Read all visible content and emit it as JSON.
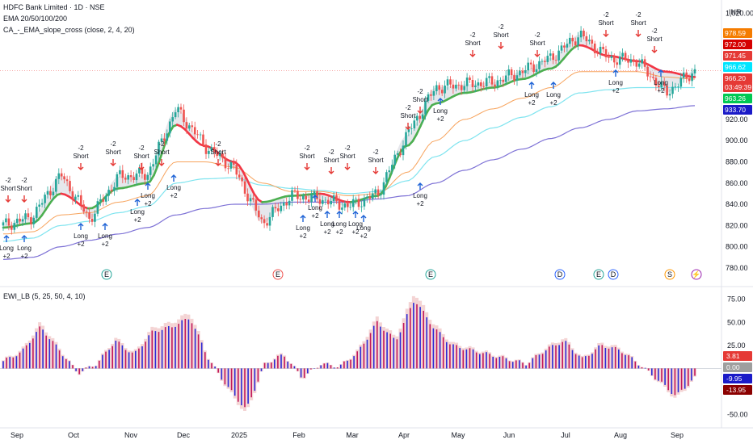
{
  "symbol_title": "HDFC Bank Limited · 1D · NSE",
  "legend": {
    "ema": "EMA 20/50/100/200",
    "slope": "CA_-_EMA_slope_cross (close, 2, 4, 20)",
    "osc": "EWI_LB (5, 25, 50, 4, 10)"
  },
  "currency": "INR",
  "colors": {
    "up": "#26a69a",
    "down": "#ef5350",
    "ema20_up": "#4caf50",
    "ema20_down": "#f23645",
    "ema50": "#f7a35c",
    "ema100": "#7fe4ef",
    "ema200": "#7e72d6",
    "osc_blue": "#2b2bd6",
    "osc_red": "#c2185b",
    "osc_shadow": "#e6a0a0"
  },
  "price_axis": {
    "min": 770,
    "max": 1025,
    "ticks": [
      "1,020.00",
      "940.00",
      "920.00",
      "900.00",
      "880.00",
      "860.00",
      "840.00",
      "820.00",
      "800.00",
      "780.00"
    ]
  },
  "price_badges": [
    {
      "label": "978.59",
      "color": "#f57c00"
    },
    {
      "label": "972.00",
      "color": "#d50000"
    },
    {
      "label": "971.45",
      "color": "#e53935"
    },
    {
      "label": "966.62",
      "color": "#00e5ff"
    },
    {
      "label": "966.20",
      "color": "#e53935"
    },
    {
      "label": "03:49:39",
      "color": "#e53935"
    },
    {
      "label": "963.26",
      "color": "#00c853"
    },
    {
      "label": "933.70",
      "color": "#1a1ac8"
    }
  ],
  "osc_axis": {
    "min": -60,
    "max": 80,
    "ticks": [
      "75.00",
      "50.00",
      "25.00",
      "-25.00",
      "-50.00"
    ]
  },
  "osc_badges": [
    {
      "label": "3.81",
      "color": "#e53935"
    },
    {
      "label": "0.00",
      "color": "#9e9e9e"
    },
    {
      "label": "-9.95",
      "color": "#1a1ac8"
    },
    {
      "label": "-13.95",
      "color": "#8b0000"
    }
  ],
  "time_axis": [
    "Sep",
    "Oct",
    "Nov",
    "Dec",
    "2025",
    "Feb",
    "Mar",
    "Apr",
    "May",
    "Jun",
    "Jul",
    "Aug",
    "Sep"
  ],
  "event_markers": [
    "E",
    "E",
    "E",
    "D",
    "E",
    "D",
    "S",
    "⚡"
  ],
  "signal_labels": {
    "short": [
      "-2",
      "Short"
    ],
    "long": [
      "Long",
      "+2"
    ]
  },
  "chart_data": [
    {
      "type": "candlestick",
      "title": "HDFC Bank Limited · 1D · NSE",
      "xlabel": "",
      "ylabel": "INR",
      "ylim": [
        770,
        1025
      ],
      "grid": false,
      "series": [
        {
          "name": "Close",
          "x": [
            "Sep",
            "Sep",
            "Oct",
            "Oct",
            "Nov",
            "Nov",
            "Dec",
            "Dec",
            "2025",
            "2025",
            "Feb",
            "Feb",
            "Mar",
            "Mar",
            "Apr",
            "Apr",
            "May",
            "May",
            "Jun",
            "Jun",
            "Jul",
            "Jul",
            "Aug",
            "Aug",
            "Sep"
          ],
          "values": [
            820,
            828,
            868,
            826,
            866,
            868,
            930,
            895,
            874,
            822,
            848,
            845,
            838,
            850,
            905,
            950,
            953,
            955,
            965,
            978,
            1000,
            978,
            975,
            945,
            966
          ]
        },
        {
          "name": "EMA 20",
          "values": [
            818,
            822,
            850,
            836,
            855,
            860,
            915,
            895,
            880,
            842,
            848,
            850,
            842,
            848,
            895,
            935,
            945,
            950,
            958,
            968,
            990,
            980,
            975,
            965,
            960
          ]
        },
        {
          "name": "EMA 50",
          "values": [
            812,
            814,
            830,
            832,
            842,
            848,
            880,
            880,
            875,
            860,
            852,
            852,
            848,
            850,
            870,
            900,
            920,
            930,
            940,
            950,
            965,
            965,
            965,
            960,
            958
          ]
        },
        {
          "name": "EMA 100",
          "values": [
            805,
            808,
            820,
            824,
            832,
            838,
            860,
            864,
            865,
            858,
            855,
            853,
            850,
            852,
            862,
            885,
            900,
            912,
            922,
            932,
            945,
            948,
            950,
            950,
            950
          ]
        },
        {
          "name": "EMA 200",
          "values": [
            788,
            790,
            800,
            806,
            812,
            818,
            830,
            836,
            840,
            840,
            842,
            842,
            842,
            845,
            848,
            860,
            872,
            882,
            892,
            902,
            912,
            920,
            928,
            930,
            933
          ]
        }
      ]
    },
    {
      "type": "bar",
      "title": "EWI_LB (5, 25, 50, 4, 10)",
      "ylim": [
        -60,
        80
      ],
      "grid": false,
      "series": [
        {
          "name": "EWI",
          "values": [
            8,
            18,
            45,
            20,
            -5,
            5,
            30,
            15,
            40,
            45,
            55,
            10,
            -20,
            -45,
            5,
            15,
            -10,
            5,
            2,
            18,
            50,
            30,
            75,
            45,
            25,
            20,
            15,
            10,
            5,
            20,
            30,
            10,
            25,
            20,
            5,
            -12,
            -30,
            -10
          ]
        }
      ]
    }
  ]
}
